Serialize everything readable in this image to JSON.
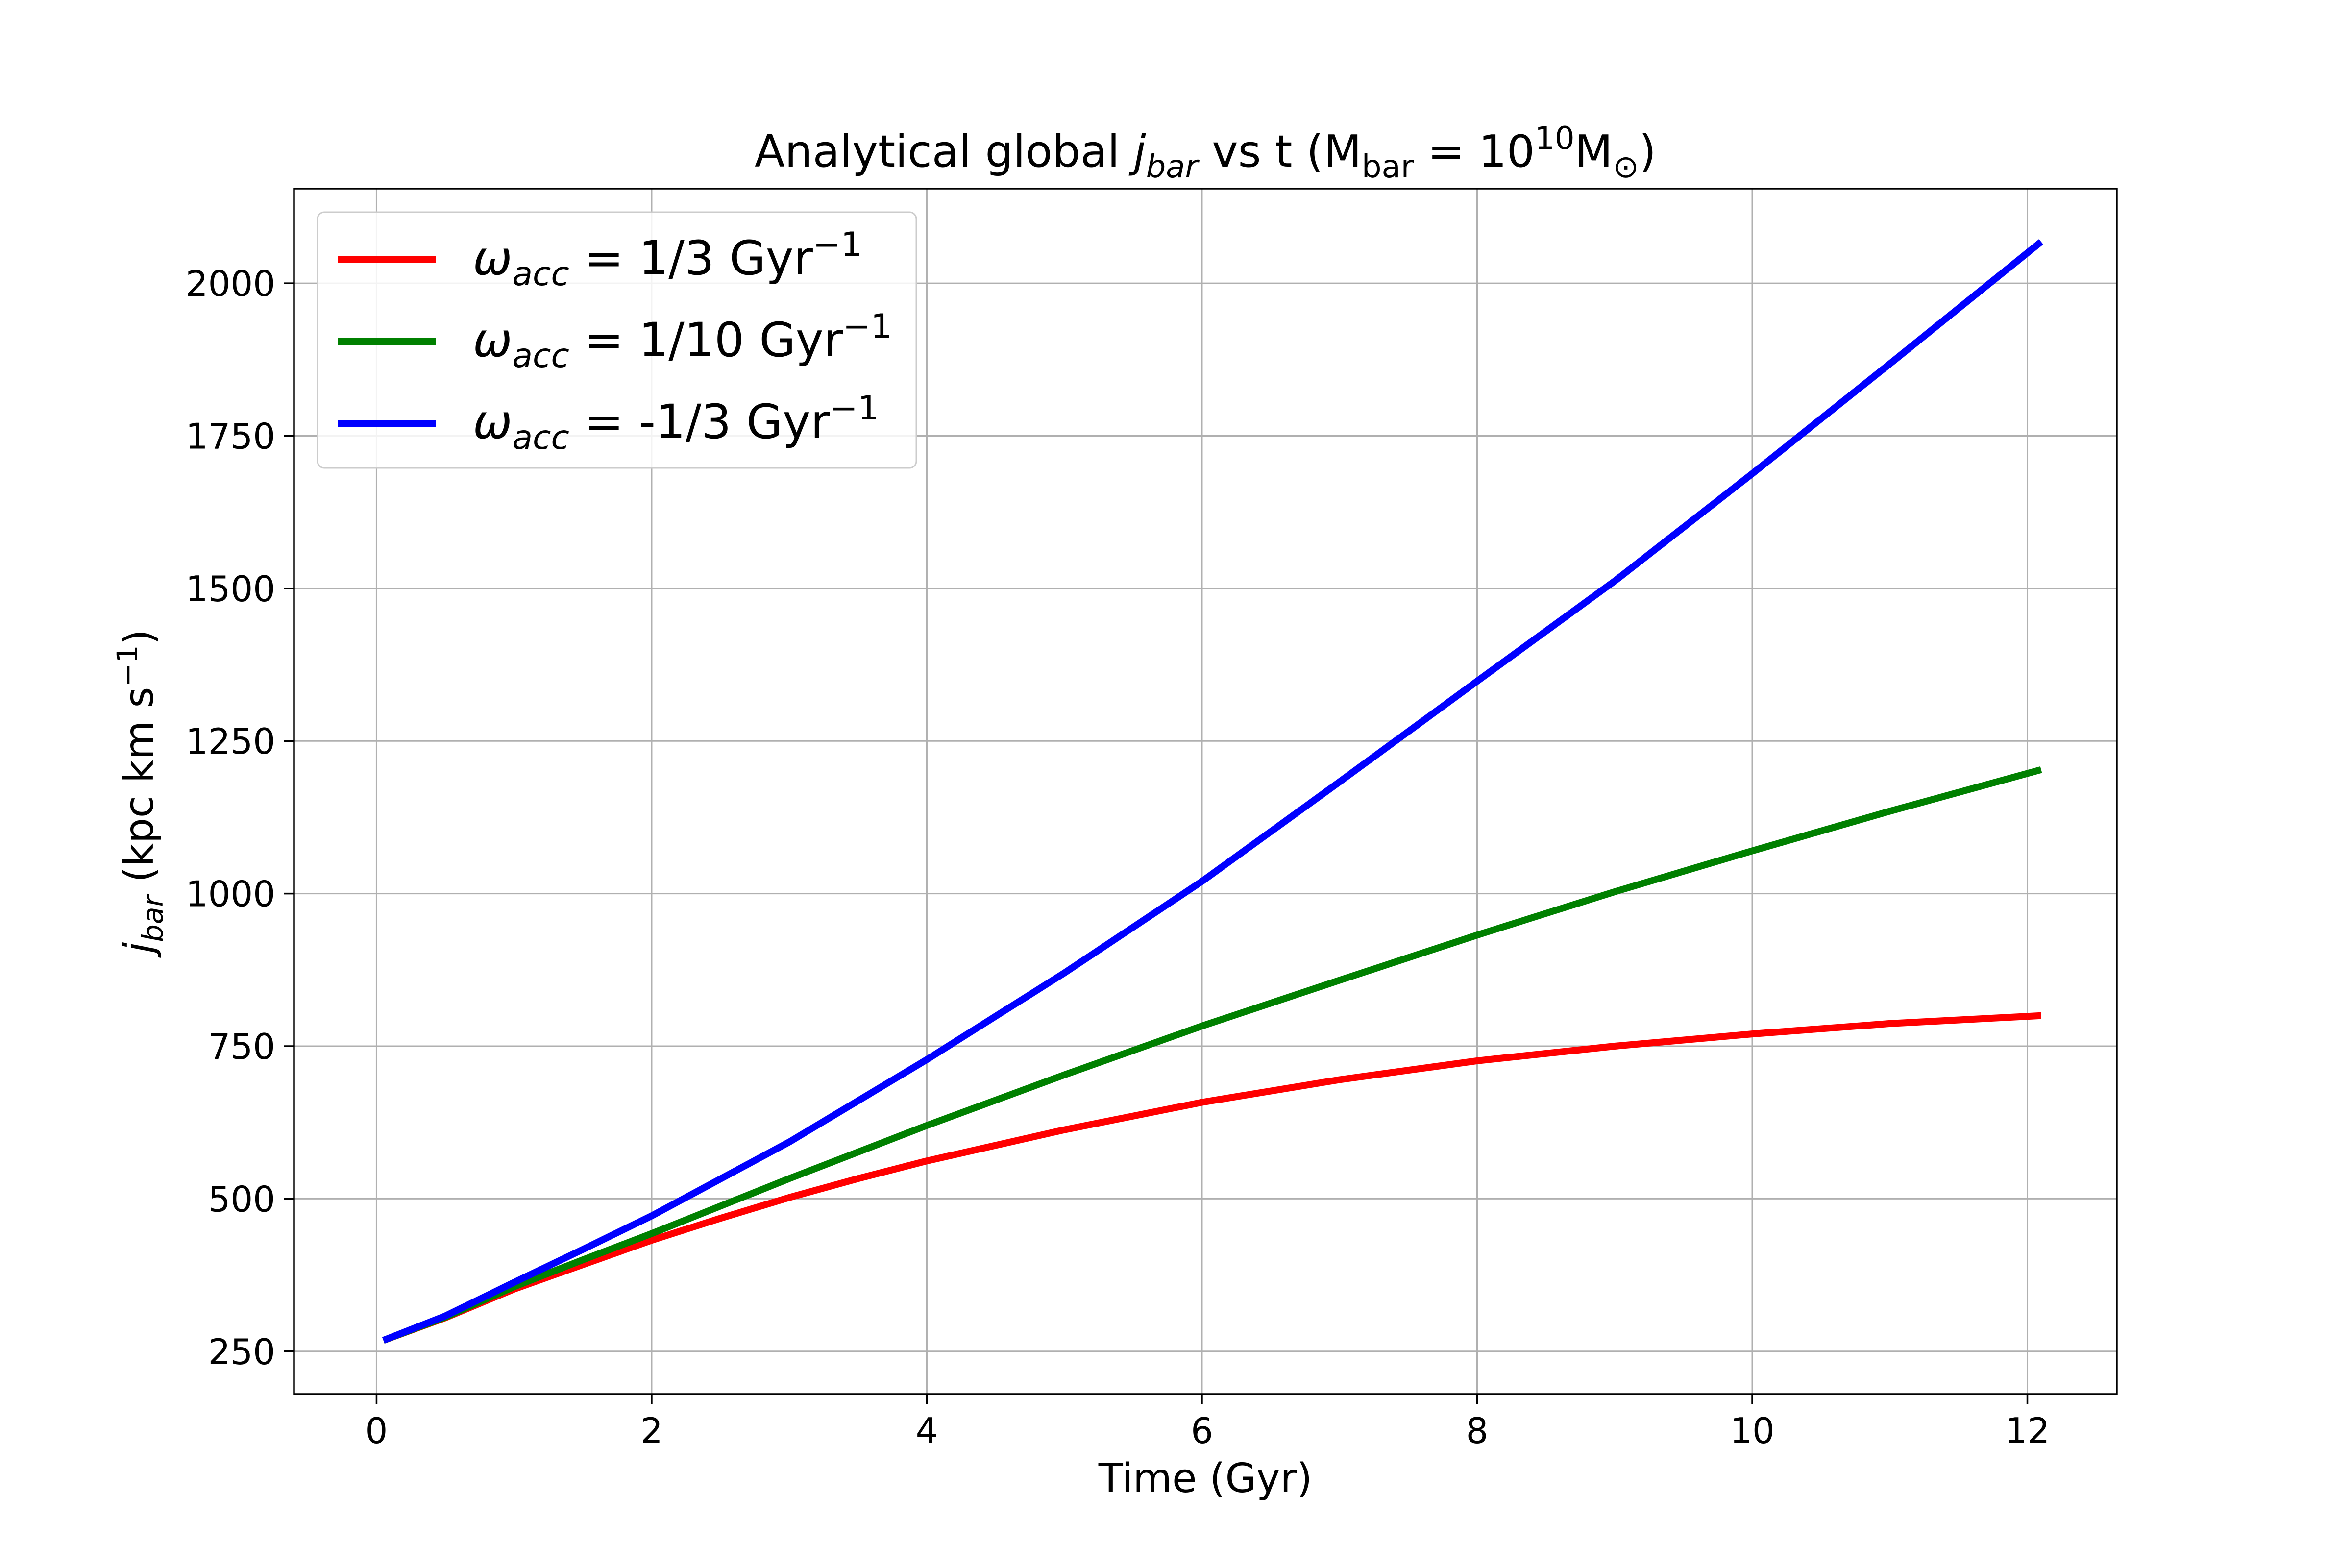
{
  "chart_data": {
    "type": "line",
    "title": {
      "prefix": "Analytical global ",
      "j": "j",
      "j_sub": "bar",
      "middle": " vs t (",
      "M": "M",
      "M_sub": "bar",
      "eq": " = 10",
      "exp": "10",
      "Msun": "M",
      "sun_sub": "⊙",
      "close": ")"
    },
    "xlabel": "Time (Gyr)",
    "ylabel": {
      "j": "j",
      "j_sub": "bar",
      "unit": " (kpc km s",
      "exp": "−1",
      "close": ")"
    },
    "xlim": [
      -0.6,
      12.65
    ],
    "ylim": [
      180,
      2155
    ],
    "xticks": [
      0,
      2,
      4,
      6,
      8,
      10,
      12
    ],
    "yticks": [
      250,
      500,
      750,
      1000,
      1250,
      1500,
      1750,
      2000
    ],
    "grid": true,
    "legend_position": "top-left",
    "series": [
      {
        "name": "ω_acc = 1/3 Gyr⁻¹",
        "legend": {
          "omega": "ω",
          "sub": "acc",
          "eq": " = 1/3 Gyr",
          "exp": "−1"
        },
        "color": "#ff0000",
        "x": [
          0.05,
          0.5,
          1,
          1.5,
          2,
          2.5,
          3,
          3.5,
          4,
          5,
          6,
          7,
          8,
          9,
          10,
          11,
          12.1
        ],
        "y": [
          268,
          305,
          352,
          392,
          432,
          468,
          502,
          533,
          562,
          613,
          658,
          695,
          726,
          750,
          770,
          787,
          800
        ]
      },
      {
        "name": "ω_acc = 1/10 Gyr⁻¹",
        "legend": {
          "omega": "ω",
          "sub": "acc",
          "eq": " = 1/10 Gyr",
          "exp": "−1"
        },
        "color": "#008000",
        "x": [
          0.05,
          0.5,
          1,
          1.5,
          2,
          3,
          4,
          5,
          6,
          7,
          8,
          9,
          10,
          11,
          12.1
        ],
        "y": [
          268,
          306,
          356,
          400,
          443,
          533,
          620,
          703,
          783,
          858,
          932,
          1003,
          1070,
          1135,
          1203
        ]
      },
      {
        "name": "ω_acc = -1/3 Gyr⁻¹",
        "legend": {
          "omega": "ω",
          "sub": "acc",
          "eq": " = -1/3 Gyr",
          "exp": "−1"
        },
        "color": "#0000ff",
        "x": [
          0.05,
          0.5,
          1,
          1.5,
          2,
          3,
          4,
          5,
          6,
          7,
          8,
          9,
          10,
          11,
          12.1
        ],
        "y": [
          268,
          308,
          363,
          417,
          472,
          593,
          728,
          870,
          1020,
          1183,
          1348,
          1512,
          1688,
          1868,
          2068
        ]
      }
    ]
  }
}
